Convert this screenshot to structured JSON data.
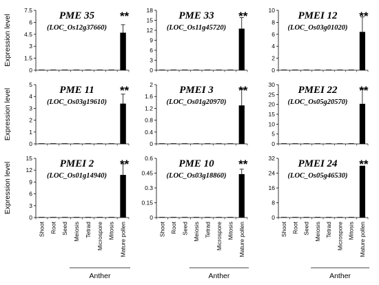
{
  "ylabel": "Expression level",
  "group_label": "Anther",
  "categories": [
    "Shoot",
    "Root",
    "Seed",
    "Meiosis",
    "Tetrad",
    "Microspore",
    "Mitosis",
    "Mature pollen"
  ],
  "significance": "**",
  "chart_data": [
    {
      "type": "bar",
      "title": "PME 35",
      "subtitle": "(LOC_Os12g37660)",
      "ylim": [
        0,
        7.5
      ],
      "ticks": [
        "0",
        "1.5",
        "3",
        "4.5",
        "6",
        "7.5"
      ],
      "tick_values": [
        0,
        1.5,
        3,
        4.5,
        6,
        7.5
      ],
      "values": [
        0.02,
        0.02,
        0.02,
        0.02,
        0.03,
        0.03,
        0.05,
        4.7
      ],
      "error": 1.0,
      "ylabel": "Expression level"
    },
    {
      "type": "bar",
      "title": "PME 33",
      "subtitle": "(LOC_Os11g45720)",
      "ylim": [
        0,
        18
      ],
      "ticks": [
        "0",
        "3",
        "6",
        "9",
        "12",
        "15",
        "18"
      ],
      "tick_values": [
        0,
        3,
        6,
        9,
        12,
        15,
        18
      ],
      "values": [
        0.03,
        0.03,
        0.03,
        0.03,
        0.03,
        0.03,
        0.05,
        12.5
      ],
      "error": 3.3,
      "ylabel": ""
    },
    {
      "type": "bar",
      "title": "PMEI 12",
      "subtitle": "(LOC_Os03g01020)",
      "ylim": [
        0,
        10
      ],
      "ticks": [
        "0",
        "2",
        "4",
        "6",
        "8",
        "10"
      ],
      "tick_values": [
        0,
        2,
        4,
        6,
        8,
        10
      ],
      "values": [
        0.02,
        0.02,
        0.02,
        0.02,
        0.02,
        0.02,
        0.04,
        6.4
      ],
      "error": 2.5,
      "ylabel": ""
    },
    {
      "type": "bar",
      "title": "PME 11",
      "subtitle": "(LOC_Os03g19610)",
      "ylim": [
        0,
        5
      ],
      "ticks": [
        "0",
        "1",
        "2",
        "3",
        "4",
        "5"
      ],
      "tick_values": [
        0,
        1,
        2,
        3,
        4,
        5
      ],
      "values": [
        0.01,
        0.01,
        0.01,
        0.01,
        0.01,
        0.01,
        0.02,
        3.4
      ],
      "error": 0.8,
      "ylabel": "Expression level"
    },
    {
      "type": "bar",
      "title": "PMEI 3",
      "subtitle": "(LOC_Os01g20970)",
      "ylim": [
        0,
        2
      ],
      "ticks": [
        "0",
        "0.4",
        "0.8",
        "1.2",
        "1.6",
        "2"
      ],
      "tick_values": [
        0,
        0.4,
        0.8,
        1.2,
        1.6,
        2
      ],
      "values": [
        0.01,
        0.01,
        0.01,
        0.01,
        0.01,
        0.01,
        0.01,
        1.3
      ],
      "error": 0.55,
      "ylabel": ""
    },
    {
      "type": "bar",
      "title": "PMEI  22",
      "subtitle": "(LOC_Os05g20570)",
      "ylim": [
        0,
        30
      ],
      "ticks": [
        "0",
        "5",
        "10",
        "15",
        "20",
        "25",
        "30"
      ],
      "tick_values": [
        0,
        5,
        10,
        15,
        20,
        25,
        30
      ],
      "values": [
        0.05,
        0.05,
        0.05,
        0.05,
        0.05,
        0.05,
        0.3,
        20.3
      ],
      "error": 7.5,
      "ylabel": ""
    },
    {
      "type": "bar",
      "title": "PMEI 2",
      "subtitle": "(LOC_Os01g14940)",
      "ylim": [
        0,
        15
      ],
      "ticks": [
        "0",
        "3",
        "6",
        "9",
        "12",
        "15"
      ],
      "tick_values": [
        0,
        3,
        6,
        9,
        12,
        15
      ],
      "values": [
        0.03,
        0.03,
        0.03,
        0.03,
        0.03,
        0.03,
        0.05,
        10.8
      ],
      "error": 2.8,
      "ylabel": "Expression level"
    },
    {
      "type": "bar",
      "title": "PME 10",
      "subtitle": "(LOC_Os03g18860)",
      "ylim": [
        0,
        0.6
      ],
      "ticks": [
        "0",
        "0.15",
        "0.3",
        "0.45",
        "0.6"
      ],
      "tick_values": [
        0,
        0.15,
        0.3,
        0.45,
        0.6
      ],
      "values": [
        0.002,
        0.002,
        0.002,
        0.002,
        0.002,
        0.002,
        0.003,
        0.44
      ],
      "error": 0.05,
      "ylabel": ""
    },
    {
      "type": "bar",
      "title": "PMEI 24",
      "subtitle": "(LOC_Os05g46530)",
      "ylim": [
        0,
        32
      ],
      "ticks": [
        "0",
        "8",
        "16",
        "24",
        "32"
      ],
      "tick_values": [
        0,
        8,
        16,
        24,
        32
      ],
      "values": [
        0.05,
        0.05,
        0.05,
        0.05,
        0.05,
        0.05,
        0.1,
        28.0
      ],
      "error": 0,
      "ylabel": ""
    }
  ]
}
